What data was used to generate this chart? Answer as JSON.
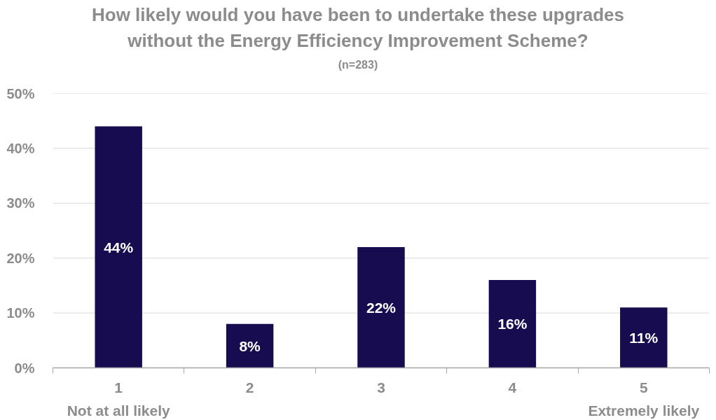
{
  "chart_data": {
    "type": "bar",
    "title": "How likely would you have been to undertake these upgrades without the Energy Efficiency Improvement Scheme?",
    "subtitle": "(n=283)",
    "categories": [
      "1\nNot at all likely",
      "2",
      "3",
      "4",
      "5\nExtremely likely"
    ],
    "values": [
      44,
      8,
      22,
      16,
      11
    ],
    "value_labels": [
      "44%",
      "8%",
      "22%",
      "16%",
      "11%"
    ],
    "color": "#170c4f",
    "ylim": [
      0,
      50
    ],
    "yticks": [
      {
        "value": 0,
        "label": "0%"
      },
      {
        "value": 10,
        "label": "10%"
      },
      {
        "value": 20,
        "label": "20%"
      },
      {
        "value": 30,
        "label": "30%"
      },
      {
        "value": 40,
        "label": "40%"
      },
      {
        "value": 50,
        "label": "50%"
      }
    ],
    "grid": "y"
  }
}
